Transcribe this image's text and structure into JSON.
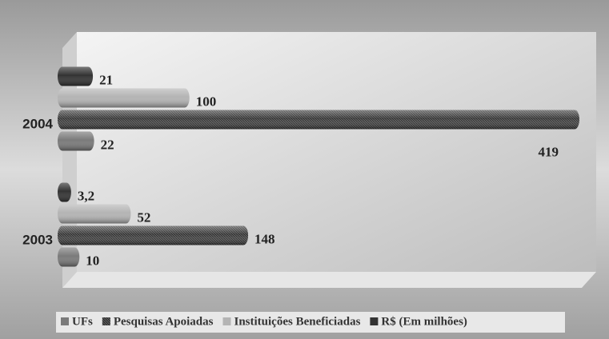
{
  "chart_data": {
    "type": "bar",
    "orientation": "horizontal",
    "categories": [
      "2003",
      "2004"
    ],
    "series": [
      {
        "name": "UFs",
        "color": "#7a7a7a",
        "values": [
          10,
          22
        ]
      },
      {
        "name": "Pesquisas Apoiadas",
        "color": "#595959",
        "values": [
          148,
          419
        ]
      },
      {
        "name": "Instituições Beneficiadas",
        "color": "#b4b4b4",
        "values": [
          52,
          100
        ]
      },
      {
        "name": "R$ (Em milhões)",
        "color": "#333333",
        "values": [
          3.2,
          21
        ],
        "value_labels": [
          "3,2",
          "21"
        ]
      }
    ],
    "legend": "bottom"
  }
}
